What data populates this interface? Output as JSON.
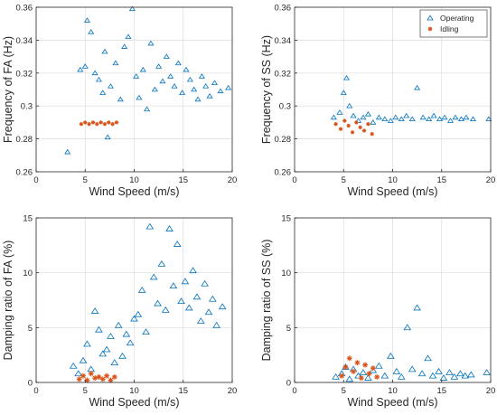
{
  "colors": {
    "operating": "#0072BD",
    "idling": "#D95319",
    "grid": "#dcdcdc",
    "axis": "#262626"
  },
  "legend": {
    "placement": "top-right of top-right panel",
    "entries": [
      {
        "label": "Operating",
        "marker": "triangle-open",
        "color": "#0072BD"
      },
      {
        "label": "Idling",
        "marker": "asterisk",
        "color": "#D95319"
      }
    ]
  },
  "chart_data": [
    {
      "id": "fa-frequency",
      "type": "scatter",
      "xlabel": "Wind Speed (m/s)",
      "ylabel": "Frequency of FA (Hz)",
      "xlim": [
        0,
        20
      ],
      "ylim": [
        0.26,
        0.36
      ],
      "xticks": [
        "0",
        "5",
        "10",
        "15",
        "20"
      ],
      "yticks": [
        "0.26",
        "0.28",
        "0.3",
        "0.32",
        "0.34",
        "0.36"
      ],
      "grid": true,
      "series": [
        {
          "name": "Operating",
          "points": [
            [
              3.2,
              0.272
            ],
            [
              4.5,
              0.322
            ],
            [
              5.0,
              0.324
            ],
            [
              5.2,
              0.352
            ],
            [
              5.6,
              0.345
            ],
            [
              6.0,
              0.32
            ],
            [
              6.4,
              0.316
            ],
            [
              6.8,
              0.308
            ],
            [
              7.0,
              0.333
            ],
            [
              7.3,
              0.281
            ],
            [
              7.6,
              0.312
            ],
            [
              8.1,
              0.326
            ],
            [
              8.6,
              0.304
            ],
            [
              9.0,
              0.336
            ],
            [
              9.4,
              0.342
            ],
            [
              9.8,
              0.359
            ],
            [
              10.2,
              0.318
            ],
            [
              10.5,
              0.305
            ],
            [
              10.9,
              0.322
            ],
            [
              11.3,
              0.298
            ],
            [
              11.7,
              0.338
            ],
            [
              12.1,
              0.31
            ],
            [
              12.5,
              0.324
            ],
            [
              12.9,
              0.315
            ],
            [
              13.3,
              0.33
            ],
            [
              13.7,
              0.318
            ],
            [
              14.1,
              0.312
            ],
            [
              14.5,
              0.326
            ],
            [
              14.9,
              0.308
            ],
            [
              15.3,
              0.322
            ],
            [
              15.7,
              0.316
            ],
            [
              16.1,
              0.31
            ],
            [
              16.5,
              0.304
            ],
            [
              16.9,
              0.318
            ],
            [
              17.3,
              0.312
            ],
            [
              17.7,
              0.306
            ],
            [
              18.2,
              0.314
            ],
            [
              18.8,
              0.309
            ],
            [
              19.6,
              0.311
            ]
          ]
        },
        {
          "name": "Idling",
          "points": [
            [
              4.6,
              0.289
            ],
            [
              5.0,
              0.29
            ],
            [
              5.4,
              0.289
            ],
            [
              5.8,
              0.29
            ],
            [
              6.2,
              0.289
            ],
            [
              6.6,
              0.29
            ],
            [
              7.0,
              0.289
            ],
            [
              7.4,
              0.29
            ],
            [
              7.8,
              0.289
            ],
            [
              8.2,
              0.29
            ]
          ]
        }
      ]
    },
    {
      "id": "ss-frequency",
      "type": "scatter",
      "xlabel": "Wind Speed (m/s)",
      "ylabel": "Frequency of SS (Hz)",
      "xlim": [
        0,
        20
      ],
      "ylim": [
        0.26,
        0.36
      ],
      "xticks": [
        "0",
        "5",
        "10",
        "15",
        "20"
      ],
      "yticks": [
        "0.26",
        "0.28",
        "0.3",
        "0.32",
        "0.34",
        "0.36"
      ],
      "grid": true,
      "series": [
        {
          "name": "Operating",
          "points": [
            [
              4.0,
              0.293
            ],
            [
              4.6,
              0.296
            ],
            [
              5.0,
              0.308
            ],
            [
              5.3,
              0.317
            ],
            [
              5.6,
              0.3
            ],
            [
              6.0,
              0.294
            ],
            [
              6.5,
              0.291
            ],
            [
              7.0,
              0.293
            ],
            [
              7.5,
              0.295
            ],
            [
              8.0,
              0.29
            ],
            [
              8.6,
              0.293
            ],
            [
              9.2,
              0.292
            ],
            [
              9.8,
              0.291
            ],
            [
              10.3,
              0.293
            ],
            [
              10.9,
              0.292
            ],
            [
              11.4,
              0.294
            ],
            [
              12.0,
              0.292
            ],
            [
              12.5,
              0.311
            ],
            [
              13.1,
              0.293
            ],
            [
              13.7,
              0.292
            ],
            [
              14.2,
              0.294
            ],
            [
              14.8,
              0.292
            ],
            [
              15.3,
              0.293
            ],
            [
              15.9,
              0.291
            ],
            [
              16.4,
              0.293
            ],
            [
              17.0,
              0.292
            ],
            [
              17.5,
              0.293
            ],
            [
              18.2,
              0.292
            ],
            [
              19.8,
              0.292
            ]
          ]
        },
        {
          "name": "Idling",
          "points": [
            [
              4.2,
              0.289
            ],
            [
              4.7,
              0.286
            ],
            [
              5.1,
              0.291
            ],
            [
              5.5,
              0.288
            ],
            [
              5.9,
              0.284
            ],
            [
              6.3,
              0.29
            ],
            [
              6.7,
              0.287
            ],
            [
              7.1,
              0.285
            ],
            [
              7.5,
              0.289
            ],
            [
              7.9,
              0.283
            ]
          ]
        }
      ]
    },
    {
      "id": "fa-damping",
      "type": "scatter",
      "xlabel": "Wind Speed (m/s)",
      "ylabel": "Damping ratio of FA (%)",
      "xlim": [
        0,
        20
      ],
      "ylim": [
        0,
        15
      ],
      "xticks": [
        "0",
        "5",
        "10",
        "15",
        "20"
      ],
      "yticks": [
        "0",
        "5",
        "10",
        "15"
      ],
      "grid": true,
      "series": [
        {
          "name": "Operating",
          "points": [
            [
              3.8,
              1.5
            ],
            [
              4.3,
              0.8
            ],
            [
              4.8,
              2.0
            ],
            [
              5.2,
              3.5
            ],
            [
              5.6,
              1.2
            ],
            [
              6.0,
              6.5
            ],
            [
              6.4,
              4.8
            ],
            [
              6.8,
              2.6
            ],
            [
              7.2,
              3.0
            ],
            [
              7.6,
              4.2
            ],
            [
              8.0,
              1.8
            ],
            [
              8.4,
              5.2
            ],
            [
              8.8,
              2.4
            ],
            [
              9.2,
              4.4
            ],
            [
              9.6,
              3.6
            ],
            [
              10.0,
              5.8
            ],
            [
              10.4,
              6.2
            ],
            [
              10.8,
              8.4
            ],
            [
              11.2,
              4.6
            ],
            [
              11.6,
              14.2
            ],
            [
              12.0,
              9.6
            ],
            [
              12.4,
              7.2
            ],
            [
              12.8,
              10.8
            ],
            [
              13.2,
              6.6
            ],
            [
              13.6,
              14.0
            ],
            [
              14.0,
              8.8
            ],
            [
              14.4,
              12.6
            ],
            [
              14.8,
              7.4
            ],
            [
              15.2,
              9.2
            ],
            [
              15.6,
              6.8
            ],
            [
              16.0,
              10.2
            ],
            [
              16.4,
              7.8
            ],
            [
              16.8,
              5.6
            ],
            [
              17.2,
              9.0
            ],
            [
              17.6,
              6.4
            ],
            [
              18.0,
              7.6
            ],
            [
              18.4,
              5.2
            ],
            [
              19.0,
              6.9
            ]
          ]
        },
        {
          "name": "Idling",
          "points": [
            [
              4.4,
              0.3
            ],
            [
              4.8,
              0.6
            ],
            [
              5.2,
              0.2
            ],
            [
              5.6,
              0.8
            ],
            [
              6.0,
              0.4
            ],
            [
              6.4,
              0.5
            ],
            [
              6.8,
              0.3
            ],
            [
              7.2,
              0.6
            ],
            [
              7.6,
              0.2
            ],
            [
              8.0,
              0.5
            ]
          ]
        }
      ]
    },
    {
      "id": "ss-damping",
      "type": "scatter",
      "xlabel": "Wind Speed (m/s)",
      "ylabel": "Damping ratio of SS (%)",
      "xlim": [
        0,
        20
      ],
      "ylim": [
        0,
        15
      ],
      "xticks": [
        "0",
        "5",
        "10",
        "15",
        "20"
      ],
      "yticks": [
        "0",
        "5",
        "10",
        "15"
      ],
      "grid": true,
      "series": [
        {
          "name": "Operating",
          "points": [
            [
              4.2,
              0.5
            ],
            [
              4.8,
              0.8
            ],
            [
              5.2,
              1.4
            ],
            [
              5.6,
              0.3
            ],
            [
              6.0,
              1.2
            ],
            [
              6.5,
              0.6
            ],
            [
              7.0,
              0.9
            ],
            [
              7.5,
              0.4
            ],
            [
              8.0,
              1.1
            ],
            [
              8.6,
              1.5
            ],
            [
              9.2,
              0.6
            ],
            [
              9.8,
              2.4
            ],
            [
              10.4,
              1.0
            ],
            [
              10.9,
              0.5
            ],
            [
              11.5,
              5.0
            ],
            [
              12.0,
              1.2
            ],
            [
              12.5,
              6.8
            ],
            [
              13.0,
              0.8
            ],
            [
              13.6,
              2.2
            ],
            [
              14.1,
              0.6
            ],
            [
              14.7,
              1.0
            ],
            [
              15.2,
              0.4
            ],
            [
              15.8,
              0.9
            ],
            [
              16.3,
              0.5
            ],
            [
              16.9,
              0.8
            ],
            [
              17.4,
              0.6
            ],
            [
              18.0,
              0.7
            ],
            [
              19.6,
              0.9
            ]
          ]
        },
        {
          "name": "Idling",
          "points": [
            [
              4.8,
              0.6
            ],
            [
              5.2,
              1.4
            ],
            [
              5.6,
              2.2
            ],
            [
              6.0,
              1.0
            ],
            [
              6.4,
              1.8
            ],
            [
              6.8,
              0.4
            ],
            [
              7.2,
              1.6
            ],
            [
              7.6,
              0.8
            ],
            [
              8.0,
              1.3
            ],
            [
              8.4,
              0.5
            ]
          ]
        }
      ]
    }
  ]
}
